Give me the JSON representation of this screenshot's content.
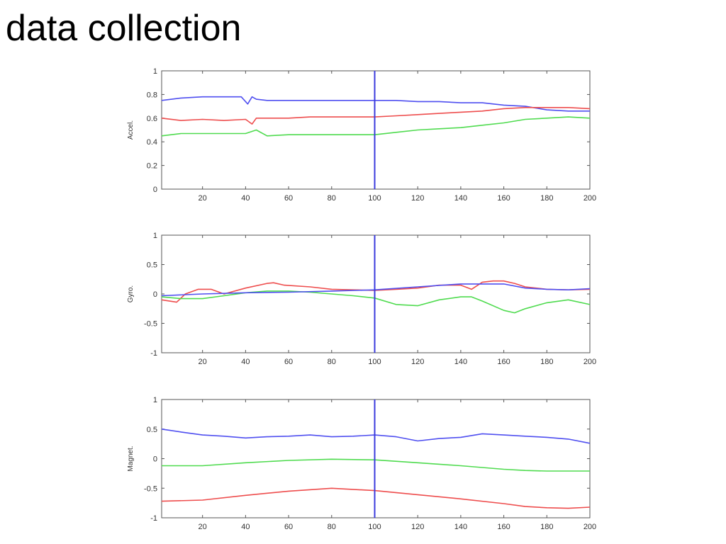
{
  "slide": {
    "title": "data collection"
  },
  "chart_data": [
    {
      "type": "line",
      "ylabel": "Accel.",
      "xlim": [
        1,
        200
      ],
      "ylim": [
        0,
        1
      ],
      "xticks": [
        20,
        40,
        60,
        80,
        100,
        120,
        140,
        160,
        180,
        200
      ],
      "yticks": [
        0,
        0.2,
        0.4,
        0.6,
        0.8,
        1
      ],
      "ytick_labels": [
        "0",
        "0.2",
        "0.4",
        "0.6",
        "0.8",
        "1"
      ],
      "marker_x": 100,
      "grid": false,
      "series": [
        {
          "color": "#4f4ff0",
          "x": [
            1,
            10,
            20,
            30,
            38,
            41,
            43,
            45,
            50,
            60,
            70,
            80,
            90,
            100,
            110,
            120,
            130,
            140,
            150,
            160,
            170,
            180,
            190,
            200
          ],
          "values": [
            0.75,
            0.77,
            0.78,
            0.78,
            0.78,
            0.72,
            0.78,
            0.76,
            0.75,
            0.75,
            0.75,
            0.75,
            0.75,
            0.75,
            0.75,
            0.74,
            0.74,
            0.73,
            0.73,
            0.71,
            0.7,
            0.67,
            0.66,
            0.66
          ]
        },
        {
          "color": "#ee4d4d",
          "x": [
            1,
            10,
            20,
            30,
            40,
            43,
            45,
            48,
            50,
            60,
            70,
            80,
            90,
            100,
            110,
            120,
            130,
            140,
            150,
            160,
            170,
            180,
            190,
            200
          ],
          "values": [
            0.6,
            0.58,
            0.59,
            0.58,
            0.59,
            0.55,
            0.6,
            0.6,
            0.6,
            0.6,
            0.61,
            0.61,
            0.61,
            0.61,
            0.62,
            0.63,
            0.64,
            0.65,
            0.66,
            0.68,
            0.69,
            0.69,
            0.69,
            0.68
          ]
        },
        {
          "color": "#4fdb4f",
          "x": [
            1,
            10,
            20,
            30,
            40,
            45,
            50,
            60,
            70,
            80,
            90,
            100,
            110,
            120,
            130,
            140,
            150,
            160,
            170,
            180,
            190,
            200
          ],
          "values": [
            0.45,
            0.47,
            0.47,
            0.47,
            0.47,
            0.5,
            0.45,
            0.46,
            0.46,
            0.46,
            0.46,
            0.46,
            0.48,
            0.5,
            0.51,
            0.52,
            0.54,
            0.56,
            0.59,
            0.6,
            0.61,
            0.6
          ]
        }
      ]
    },
    {
      "type": "line",
      "ylabel": "Gyro.",
      "xlim": [
        1,
        200
      ],
      "ylim": [
        -1,
        1
      ],
      "xticks": [
        20,
        40,
        60,
        80,
        100,
        120,
        140,
        160,
        180,
        200
      ],
      "yticks": [
        -1,
        -0.5,
        0,
        0.5,
        1
      ],
      "ytick_labels": [
        "-1",
        "-0.5",
        "0",
        "0.5",
        "1"
      ],
      "marker_x": 100,
      "grid": false,
      "series": [
        {
          "color": "#ee4d4d",
          "x": [
            1,
            8,
            12,
            18,
            24,
            30,
            40,
            50,
            53,
            58,
            70,
            80,
            90,
            100,
            110,
            120,
            130,
            140,
            145,
            150,
            155,
            160,
            165,
            170,
            180,
            190,
            200
          ],
          "values": [
            -0.1,
            -0.14,
            0.0,
            0.08,
            0.08,
            0.0,
            0.1,
            0.18,
            0.19,
            0.15,
            0.12,
            0.08,
            0.07,
            0.06,
            0.08,
            0.1,
            0.15,
            0.15,
            0.08,
            0.2,
            0.22,
            0.22,
            0.18,
            0.12,
            0.08,
            0.07,
            0.08
          ]
        },
        {
          "color": "#4fdb4f",
          "x": [
            1,
            10,
            20,
            30,
            40,
            50,
            60,
            70,
            80,
            90,
            100,
            110,
            120,
            130,
            140,
            145,
            150,
            160,
            165,
            170,
            180,
            190,
            200
          ],
          "values": [
            -0.05,
            -0.08,
            -0.08,
            -0.03,
            0.02,
            0.05,
            0.05,
            0.03,
            0.0,
            -0.03,
            -0.07,
            -0.18,
            -0.2,
            -0.1,
            -0.05,
            -0.05,
            -0.12,
            -0.28,
            -0.32,
            -0.25,
            -0.15,
            -0.1,
            -0.18
          ]
        },
        {
          "color": "#4f4ff0",
          "x": [
            1,
            20,
            40,
            60,
            80,
            100,
            120,
            140,
            160,
            170,
            180,
            190,
            200
          ],
          "values": [
            -0.03,
            0.0,
            0.02,
            0.03,
            0.05,
            0.07,
            0.12,
            0.17,
            0.17,
            0.1,
            0.08,
            0.07,
            0.09
          ]
        }
      ]
    },
    {
      "type": "line",
      "ylabel": "Magnet.",
      "xlim": [
        1,
        200
      ],
      "ylim": [
        -1,
        1
      ],
      "xticks": [
        20,
        40,
        60,
        80,
        100,
        120,
        140,
        160,
        180,
        200
      ],
      "yticks": [
        -1,
        -0.5,
        0,
        0.5,
        1
      ],
      "ytick_labels": [
        "-1",
        "-0.5",
        "0",
        "0.5",
        "1"
      ],
      "marker_x": 100,
      "grid": false,
      "series": [
        {
          "color": "#4f4ff0",
          "x": [
            1,
            10,
            20,
            30,
            40,
            50,
            60,
            70,
            80,
            90,
            100,
            110,
            120,
            130,
            140,
            150,
            160,
            170,
            180,
            190,
            200
          ],
          "values": [
            0.5,
            0.45,
            0.4,
            0.38,
            0.35,
            0.37,
            0.38,
            0.4,
            0.37,
            0.38,
            0.4,
            0.37,
            0.3,
            0.34,
            0.36,
            0.42,
            0.4,
            0.38,
            0.36,
            0.33,
            0.26
          ]
        },
        {
          "color": "#4fdb4f",
          "x": [
            1,
            20,
            40,
            60,
            80,
            100,
            120,
            140,
            160,
            170,
            180,
            190,
            200
          ],
          "values": [
            -0.12,
            -0.12,
            -0.07,
            -0.03,
            -0.01,
            -0.02,
            -0.07,
            -0.12,
            -0.18,
            -0.2,
            -0.21,
            -0.21,
            -0.21
          ]
        },
        {
          "color": "#ee4d4d",
          "x": [
            1,
            20,
            40,
            60,
            80,
            100,
            120,
            140,
            160,
            170,
            180,
            190,
            200
          ],
          "values": [
            -0.72,
            -0.7,
            -0.62,
            -0.55,
            -0.5,
            -0.54,
            -0.61,
            -0.68,
            -0.76,
            -0.81,
            -0.83,
            -0.84,
            -0.82
          ]
        }
      ]
    }
  ]
}
